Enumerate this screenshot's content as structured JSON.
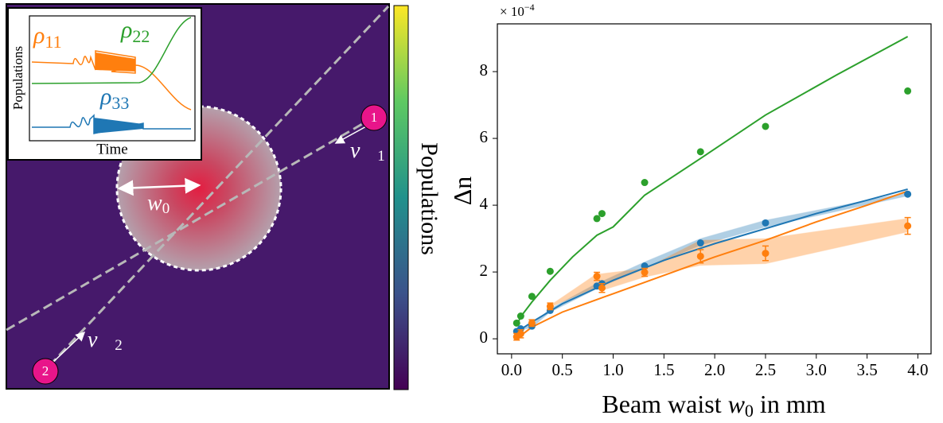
{
  "diagram": {
    "inset": {
      "ylabel": "Populations",
      "xlabel": "Time",
      "labels": [
        {
          "symbol": "ρ",
          "subscript": "11"
        },
        {
          "symbol": "ρ",
          "subscript": "22"
        },
        {
          "symbol": "ρ",
          "subscript": "33"
        }
      ]
    },
    "waist": {
      "symbol": "w",
      "subscript": "0"
    },
    "velocities": [
      {
        "symbol": "v⃗",
        "subscript": "1"
      },
      {
        "symbol": "v⃗",
        "subscript": "2"
      }
    ],
    "markers": [
      "1",
      "2"
    ],
    "colorbar_label": "Populations"
  },
  "chart_data": {
    "type": "scatter",
    "ylabel": "Δn",
    "xlabel": {
      "text": "Beam waist ",
      "symbol": "w",
      "subscript": "0",
      "unit": " in mm"
    },
    "scale_label": {
      "base": "× 10",
      "exponent": "−4"
    },
    "xlim": [
      -0.14,
      4.13
    ],
    "ylim": [
      -0.45,
      9.43
    ],
    "xticks": [
      {
        "value": 0,
        "label": "0.0"
      },
      0.5,
      {
        "value": 1,
        "label": "1.0"
      },
      1.5,
      {
        "value": 2,
        "label": "2.0"
      },
      2.5,
      {
        "value": 3,
        "label": "3.0"
      },
      3.5,
      {
        "value": 4,
        "label": "4.0"
      }
    ],
    "yticks": [
      0,
      2,
      4,
      6,
      8
    ],
    "series": [
      {
        "style": "band",
        "color": "#1f77b4",
        "x": [
          0.05,
          0.09,
          0.2,
          0.38,
          0.84,
          0.89,
          1.31,
          1.86,
          2.5,
          3.9
        ],
        "lower": [
          0.18,
          0.26,
          0.34,
          0.8,
          1.5,
          1.58,
          2.1,
          2.8,
          3.35,
          4.28
        ],
        "upper": [
          0.26,
          0.34,
          0.42,
          0.9,
          1.66,
          1.72,
          2.3,
          3.0,
          3.55,
          4.38
        ]
      },
      {
        "style": "band",
        "color": "#ff7f0e",
        "x": [
          0.38,
          0.84,
          0.89,
          1.31,
          1.86,
          2.5,
          3.9
        ],
        "lower": [
          0.95,
          1.55,
          1.45,
          1.85,
          2.2,
          2.25,
          3.2
        ],
        "upper": [
          1.0,
          1.95,
          1.95,
          2.1,
          2.95,
          3.0,
          3.6
        ]
      },
      {
        "style": "line",
        "color": "#2ca02c",
        "x": [
          0.05,
          0.1,
          0.2,
          0.38,
          0.6,
          0.84,
          1.0,
          1.31,
          1.86,
          2.5,
          3.2,
          3.9
        ],
        "values": [
          0.42,
          0.7,
          1.1,
          1.75,
          2.45,
          3.1,
          3.35,
          4.3,
          5.4,
          6.7,
          7.9,
          9.05
        ]
      },
      {
        "style": "line",
        "color": "#1f77b4",
        "x": [
          0.05,
          0.2,
          0.5,
          1.0,
          1.5,
          2.0,
          2.5,
          3.0,
          3.5,
          3.9
        ],
        "values": [
          0.2,
          0.5,
          1.05,
          1.75,
          2.35,
          2.85,
          3.3,
          3.75,
          4.15,
          4.48
        ]
      },
      {
        "style": "line",
        "color": "#ff7f0e",
        "x": [
          0.05,
          0.2,
          0.5,
          1.0,
          1.5,
          2.0,
          2.5,
          3.0,
          3.5,
          3.9
        ],
        "values": [
          0.0,
          0.35,
          0.8,
          1.35,
          1.9,
          2.45,
          2.95,
          3.5,
          4.0,
          4.42
        ]
      },
      {
        "style": "points",
        "color": "#2ca02c",
        "x": [
          0.05,
          0.09,
          0.2,
          0.38,
          0.84,
          0.89,
          1.31,
          1.86,
          2.5,
          3.9
        ],
        "values": [
          0.47,
          0.68,
          1.27,
          2.02,
          3.6,
          3.75,
          4.68,
          5.6,
          6.36,
          7.42
        ]
      },
      {
        "style": "points",
        "color": "#1f77b4",
        "x": [
          0.05,
          0.09,
          0.2,
          0.38,
          0.84,
          0.89,
          1.31,
          1.86,
          2.5,
          3.9
        ],
        "values": [
          0.22,
          0.3,
          0.38,
          0.85,
          1.58,
          1.65,
          2.18,
          2.87,
          3.47,
          4.33
        ]
      },
      {
        "style": "points",
        "color": "#ff7f0e",
        "x": [
          0.05,
          0.09,
          0.2,
          0.38,
          0.84,
          0.89,
          1.31,
          1.86,
          2.5,
          3.9
        ],
        "values": [
          0.06,
          0.15,
          0.47,
          0.97,
          1.87,
          1.52,
          1.99,
          2.47,
          2.56,
          3.38
        ],
        "errors": [
          0.1,
          0.12,
          0.1,
          0.1,
          0.12,
          0.13,
          0.12,
          0.2,
          0.22,
          0.25
        ]
      }
    ]
  }
}
